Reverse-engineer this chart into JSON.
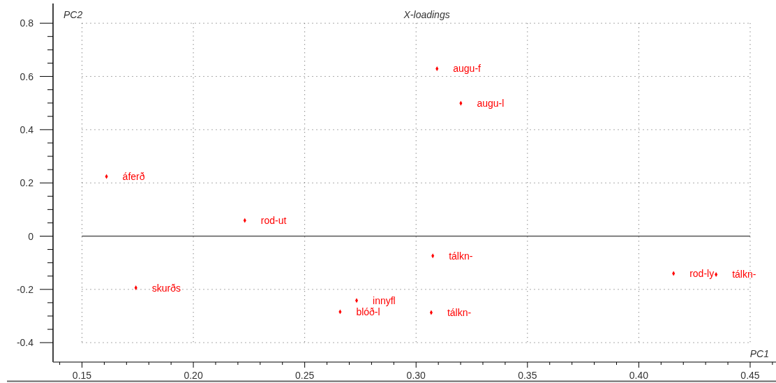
{
  "chart_data": {
    "type": "scatter",
    "title": "X-loadings",
    "xlabel": "PC1",
    "ylabel": "PC2",
    "x": [
      0.161,
      0.3094,
      0.3201,
      0.2231,
      0.1742,
      0.2733,
      0.2659,
      0.3075,
      0.3068,
      0.4156,
      0.4347
    ],
    "values": [
      0.224,
      0.629,
      0.499,
      0.059,
      -0.194,
      -0.242,
      -0.284,
      -0.074,
      -0.287,
      -0.14,
      -0.144
    ],
    "color": "#ff0000",
    "marker": "diamond",
    "xlim": [
      0.137,
      0.4616
    ],
    "ylim": [
      -0.473,
      0.874
    ],
    "xticks": [
      {
        "value": 0.14,
        "label": null
      },
      {
        "value": 0.15,
        "label": "0.15"
      },
      {
        "value": 0.16,
        "label": null
      },
      {
        "value": 0.17,
        "label": null
      },
      {
        "value": 0.18,
        "label": null
      },
      {
        "value": 0.19,
        "label": null
      },
      {
        "value": 0.2,
        "label": "0.20"
      },
      {
        "value": 0.21,
        "label": null
      },
      {
        "value": 0.22,
        "label": null
      },
      {
        "value": 0.23,
        "label": null
      },
      {
        "value": 0.24,
        "label": null
      },
      {
        "value": 0.25,
        "label": "0.25"
      },
      {
        "value": 0.26,
        "label": null
      },
      {
        "value": 0.27,
        "label": null
      },
      {
        "value": 0.28,
        "label": null
      },
      {
        "value": 0.29,
        "label": null
      },
      {
        "value": 0.3,
        "label": "0.30"
      },
      {
        "value": 0.31,
        "label": null
      },
      {
        "value": 0.32,
        "label": null
      },
      {
        "value": 0.33,
        "label": null
      },
      {
        "value": 0.34,
        "label": null
      },
      {
        "value": 0.35,
        "label": "0.35"
      },
      {
        "value": 0.36,
        "label": null
      },
      {
        "value": 0.37,
        "label": null
      },
      {
        "value": 0.38,
        "label": null
      },
      {
        "value": 0.39,
        "label": null
      },
      {
        "value": 0.4,
        "label": "0.40"
      },
      {
        "value": 0.41,
        "label": null
      },
      {
        "value": 0.42,
        "label": null
      },
      {
        "value": 0.43,
        "label": null
      },
      {
        "value": 0.44,
        "label": null
      },
      {
        "value": 0.45,
        "label": "0.45"
      },
      {
        "value": 0.46,
        "label": null
      }
    ],
    "yticks": [
      -0.4,
      {
        "value": -0.35,
        "label": null
      },
      {
        "value": -0.3,
        "label": null
      },
      {
        "value": -0.25,
        "label": null
      },
      -0.2,
      {
        "value": -0.15,
        "label": null
      },
      {
        "value": -0.1,
        "label": null
      },
      {
        "value": -0.05,
        "label": null
      },
      0,
      {
        "value": 0.05,
        "label": null
      },
      {
        "value": 0.1,
        "label": null
      },
      {
        "value": 0.15,
        "label": null
      },
      0.2,
      {
        "value": 0.25,
        "label": null
      },
      {
        "value": 0.3,
        "label": null
      },
      {
        "value": 0.35,
        "label": null
      },
      0.4,
      {
        "value": 0.45,
        "label": null
      },
      {
        "value": 0.5,
        "label": null
      },
      {
        "value": 0.55,
        "label": null
      },
      0.6,
      {
        "value": 0.65,
        "label": null
      },
      {
        "value": 0.7,
        "label": null
      },
      {
        "value": 0.75,
        "label": null
      },
      0.8
    ],
    "grid": true,
    "ref_lines": [
      {
        "axis": "y",
        "value": 0,
        "color": "#555555"
      }
    ],
    "annotations": [
      {
        "text": "áferð",
        "x": 0.161,
        "y": 0.224
      },
      {
        "text": "augu-f",
        "x": 0.3094,
        "y": 0.629
      },
      {
        "text": "augu-l",
        "x": 0.3201,
        "y": 0.499
      },
      {
        "text": "rod-ut",
        "x": 0.2231,
        "y": 0.059
      },
      {
        "text": "skurðs",
        "x": 0.1742,
        "y": -0.194
      },
      {
        "text": "innyfl",
        "x": 0.2733,
        "y": -0.242
      },
      {
        "text": "blóð-l",
        "x": 0.2659,
        "y": -0.284
      },
      {
        "text": "tálkn-",
        "x": 0.3075,
        "y": -0.074
      },
      {
        "text": "tálkn-",
        "x": 0.3068,
        "y": -0.287
      },
      {
        "text": "rod-ly",
        "x": 0.4156,
        "y": -0.14
      },
      {
        "text": "tálkn-",
        "x": 0.4347,
        "y": -0.144
      }
    ]
  }
}
